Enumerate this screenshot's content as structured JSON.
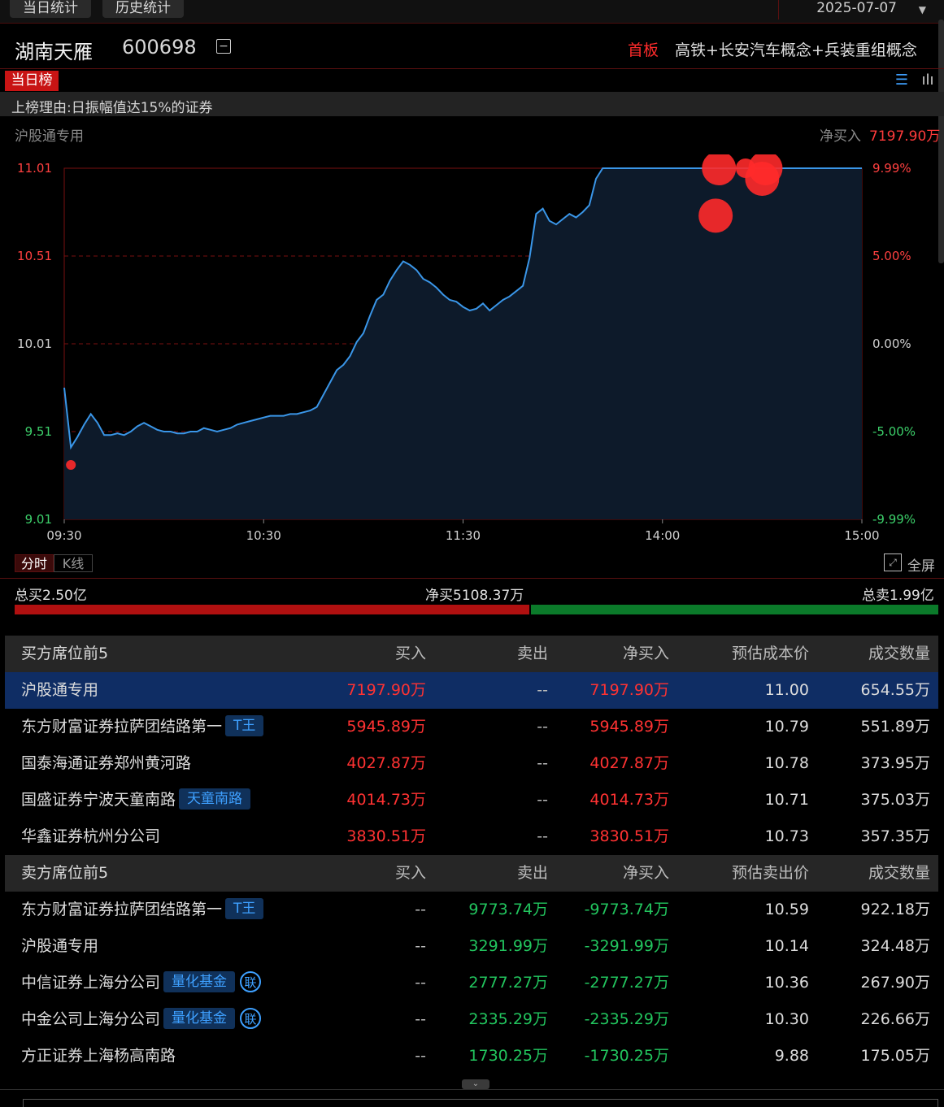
{
  "top_tabs": [
    "当日统计",
    "历史统计"
  ],
  "date": "2025-07-07",
  "stock": {
    "name": "湖南天雁",
    "code": "600698",
    "collapse_icon": "minus-square-icon"
  },
  "tag": "首板",
  "concepts": "高铁+长安汽车概念+兵装重组概念",
  "daily_tab": "当日榜",
  "reason": "上榜理由:日振幅值达15%的证券",
  "seat": {
    "label": "沪股通专用",
    "net_label": "净买入",
    "net_value": "7197.90万"
  },
  "chart_data": {
    "type": "line",
    "x_ticks": [
      "09:30",
      "10:30",
      "11:30",
      "14:00",
      "15:00"
    ],
    "y_ticks_left": [
      "11.01",
      "10.51",
      "10.01",
      "9.51",
      "9.01"
    ],
    "y_ticks_right": [
      "9.99%",
      "5.00%",
      "0.00%",
      "-5.00%",
      "-9.99%"
    ],
    "ylim": [
      9.01,
      11.01
    ],
    "prev_close": 10.01,
    "series": [
      {
        "x": [
          0,
          2,
          4,
          6,
          8,
          10,
          12,
          14,
          16,
          18,
          20,
          22,
          24,
          26,
          28,
          30,
          32,
          34,
          36,
          38,
          40,
          42,
          44,
          46,
          48,
          50,
          52,
          54,
          56,
          58,
          60,
          62,
          64,
          66,
          68,
          70,
          72,
          74,
          76,
          78,
          80,
          82,
          84,
          86,
          88,
          90,
          92,
          94,
          96,
          98,
          100,
          102,
          104,
          106,
          108,
          110,
          112,
          114,
          116,
          118,
          120,
          122,
          124,
          126,
          128,
          130,
          132,
          134,
          136,
          138,
          140,
          142,
          144,
          146,
          148,
          150,
          152,
          154,
          156,
          158,
          160,
          162,
          164,
          166,
          168,
          170,
          172,
          174,
          176,
          178,
          180,
          182,
          184,
          186,
          188,
          190,
          192,
          194,
          196,
          198,
          200,
          202,
          204,
          206,
          208,
          210,
          212,
          214,
          216,
          218,
          220,
          222,
          224,
          226,
          228,
          230,
          232,
          234,
          236,
          238,
          240
        ],
        "y": [
          9.76,
          9.42,
          9.48,
          9.55,
          9.61,
          9.56,
          9.49,
          9.49,
          9.5,
          9.49,
          9.51,
          9.54,
          9.56,
          9.54,
          9.52,
          9.51,
          9.51,
          9.5,
          9.5,
          9.51,
          9.51,
          9.53,
          9.52,
          9.51,
          9.52,
          9.53,
          9.55,
          9.56,
          9.57,
          9.58,
          9.59,
          9.6,
          9.6,
          9.6,
          9.61,
          9.61,
          9.62,
          9.63,
          9.65,
          9.72,
          9.79,
          9.86,
          9.89,
          9.94,
          10.02,
          10.07,
          10.17,
          10.26,
          10.29,
          10.37,
          10.43,
          10.48,
          10.46,
          10.43,
          10.38,
          10.36,
          10.33,
          10.29,
          10.26,
          10.25,
          10.22,
          10.2,
          10.21,
          10.24,
          10.2,
          10.23,
          10.26,
          10.28,
          10.31,
          10.34,
          10.5,
          10.75,
          10.78,
          10.71,
          10.69,
          10.72,
          10.75,
          10.73,
          10.76,
          10.8,
          10.95,
          11.01,
          11.01,
          11.01,
          11.01,
          11.01,
          11.01,
          11.01,
          11.01,
          11.01,
          11.01,
          11.01,
          11.01,
          11.01,
          11.01,
          11.01,
          11.01,
          11.01,
          11.01,
          11.01,
          11.01,
          11.01,
          11.01,
          11.01,
          11.01,
          11.01,
          11.01,
          11.01,
          11.01,
          11.01,
          11.01,
          11.01,
          11.01,
          11.01,
          11.01,
          11.01,
          11.01,
          11.01,
          11.01,
          11.01,
          11.01
        ]
      }
    ],
    "markers": [
      {
        "x": 2,
        "y": 9.32,
        "size": "small"
      },
      {
        "x": 196,
        "y": 10.74,
        "size": "large"
      },
      {
        "x": 197,
        "y": 11.01,
        "size": "large"
      },
      {
        "x": 205,
        "y": 11.01,
        "size": "medium"
      },
      {
        "x": 210,
        "y": 10.95,
        "size": "large"
      },
      {
        "x": 211,
        "y": 11.01,
        "size": "large"
      }
    ],
    "colors": {
      "line": "#3a96e8",
      "area": "#0d1a2a",
      "grid": "#7a1010",
      "marker": "#ff2a2a"
    }
  },
  "chart_tabs": {
    "fenshi": "分时",
    "kline": "K线"
  },
  "fullscreen": {
    "label": "全屏",
    "icon": "fullscreen-icon"
  },
  "summary": {
    "total_buy": "总买2.50亿",
    "net_buy": "净买5108.37万",
    "total_sell": "总卖1.99亿",
    "buy_ratio": 0.557
  },
  "buy_table": {
    "headers": [
      "买方席位前5",
      "买入",
      "卖出",
      "净买入",
      "预估成本价",
      "成交数量"
    ],
    "rows": [
      {
        "name": "沪股通专用",
        "badge": "",
        "lian": "",
        "buy": "7197.90万",
        "sell": "--",
        "net": "7197.90万",
        "price": "11.00",
        "qty": "654.55万"
      },
      {
        "name": "东方财富证券拉萨团结路第一",
        "badge": "T王",
        "lian": "",
        "buy": "5945.89万",
        "sell": "--",
        "net": "5945.89万",
        "price": "10.79",
        "qty": "551.89万"
      },
      {
        "name": "国泰海通证券郑州黄河路",
        "badge": "",
        "lian": "",
        "buy": "4027.87万",
        "sell": "--",
        "net": "4027.87万",
        "price": "10.78",
        "qty": "373.95万"
      },
      {
        "name": "国盛证券宁波天童南路",
        "badge": "天童南路",
        "lian": "",
        "buy": "4014.73万",
        "sell": "--",
        "net": "4014.73万",
        "price": "10.71",
        "qty": "375.03万"
      },
      {
        "name": "华鑫证券杭州分公司",
        "badge": "",
        "lian": "",
        "buy": "3830.51万",
        "sell": "--",
        "net": "3830.51万",
        "price": "10.73",
        "qty": "357.35万"
      }
    ]
  },
  "sell_table": {
    "headers": [
      "卖方席位前5",
      "买入",
      "卖出",
      "净买入",
      "预估卖出价",
      "成交数量"
    ],
    "rows": [
      {
        "name": "东方财富证券拉萨团结路第一",
        "badge": "T王",
        "lian": "",
        "buy": "--",
        "sell": "9773.74万",
        "net": "-9773.74万",
        "price": "10.59",
        "qty": "922.18万"
      },
      {
        "name": "沪股通专用",
        "badge": "",
        "lian": "",
        "buy": "--",
        "sell": "3291.99万",
        "net": "-3291.99万",
        "price": "10.14",
        "qty": "324.48万"
      },
      {
        "name": "中信证券上海分公司",
        "badge": "量化基金",
        "lian": "联",
        "buy": "--",
        "sell": "2777.27万",
        "net": "-2777.27万",
        "price": "10.36",
        "qty": "267.90万"
      },
      {
        "name": "中金公司上海分公司",
        "badge": "量化基金",
        "lian": "联",
        "buy": "--",
        "sell": "2335.29万",
        "net": "-2335.29万",
        "price": "10.30",
        "qty": "226.66万"
      },
      {
        "name": "方正证券上海杨高南路",
        "badge": "",
        "lian": "",
        "buy": "--",
        "sell": "1730.25万",
        "net": "-1730.25万",
        "price": "9.88",
        "qty": "175.05万"
      }
    ]
  }
}
